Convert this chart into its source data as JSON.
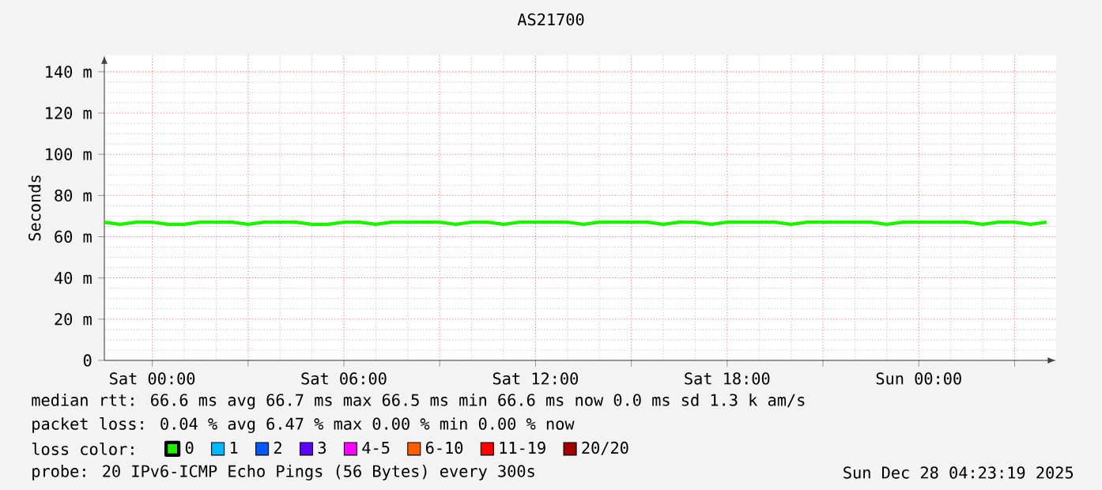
{
  "chart_data": {
    "type": "line",
    "title": "AS21700",
    "ylabel": "Seconds",
    "xlim": [
      "2025-12-26T22:30",
      "2025-12-28T04:18"
    ],
    "ylim": [
      0,
      148
    ],
    "xticks": [
      {
        "value": "2025-12-27T00:00",
        "label": "Sat 00:00"
      },
      {
        "value": "2025-12-27T03:00",
        "label": null
      },
      {
        "value": "2025-12-27T06:00",
        "label": "Sat 06:00"
      },
      {
        "value": "2025-12-27T09:00",
        "label": null
      },
      {
        "value": "2025-12-27T12:00",
        "label": "Sat 12:00"
      },
      {
        "value": "2025-12-27T15:00",
        "label": null
      },
      {
        "value": "2025-12-27T18:00",
        "label": "Sat 18:00"
      },
      {
        "value": "2025-12-27T21:00",
        "label": null
      },
      {
        "value": "2025-12-28T00:00",
        "label": "Sun 00:00"
      },
      {
        "value": "2025-12-28T03:00",
        "label": null
      }
    ],
    "yticks": [
      {
        "value": 0,
        "label": "0"
      },
      {
        "value": 20,
        "label": "20 m"
      },
      {
        "value": 40,
        "label": "40 m"
      },
      {
        "value": 60,
        "label": "60 m"
      },
      {
        "value": 80,
        "label": "80 m"
      },
      {
        "value": 100,
        "label": "100 m"
      },
      {
        "value": 120,
        "label": "120 m"
      },
      {
        "value": 140,
        "label": "140 m"
      }
    ],
    "grid": true,
    "legend": "bottom",
    "legend_title": "loss color:",
    "line_style": "solid",
    "marker": "none",
    "x": [
      "2025-12-26T22:30",
      "2025-12-26T23:00",
      "2025-12-26T23:30",
      "2025-12-27T00:00",
      "2025-12-27T00:30",
      "2025-12-27T01:00",
      "2025-12-27T01:30",
      "2025-12-27T02:00",
      "2025-12-27T02:30",
      "2025-12-27T03:00",
      "2025-12-27T03:30",
      "2025-12-27T04:00",
      "2025-12-27T04:30",
      "2025-12-27T05:00",
      "2025-12-27T05:30",
      "2025-12-27T06:00",
      "2025-12-27T06:30",
      "2025-12-27T07:00",
      "2025-12-27T07:30",
      "2025-12-27T08:00",
      "2025-12-27T08:30",
      "2025-12-27T09:00",
      "2025-12-27T09:30",
      "2025-12-27T10:00",
      "2025-12-27T10:30",
      "2025-12-27T11:00",
      "2025-12-27T11:30",
      "2025-12-27T12:00",
      "2025-12-27T12:30",
      "2025-12-27T13:00",
      "2025-12-27T13:30",
      "2025-12-27T14:00",
      "2025-12-27T14:30",
      "2025-12-27T15:00",
      "2025-12-27T15:30",
      "2025-12-27T16:00",
      "2025-12-27T16:30",
      "2025-12-27T17:00",
      "2025-12-27T17:30",
      "2025-12-27T18:00",
      "2025-12-27T18:30",
      "2025-12-27T19:00",
      "2025-12-27T19:30",
      "2025-12-27T20:00",
      "2025-12-27T20:30",
      "2025-12-27T21:00",
      "2025-12-27T21:30",
      "2025-12-27T22:00",
      "2025-12-27T22:30",
      "2025-12-27T23:00",
      "2025-12-27T23:30",
      "2025-12-28T00:00",
      "2025-12-28T00:30",
      "2025-12-28T01:00",
      "2025-12-28T01:30",
      "2025-12-28T02:00",
      "2025-12-28T02:30",
      "2025-12-28T03:00",
      "2025-12-28T03:30",
      "2025-12-28T04:00"
    ],
    "series": [
      {
        "name": "0",
        "color": "#22ee00",
        "values": [
          67,
          66,
          67,
          67,
          66,
          66,
          67,
          67,
          67,
          66,
          67,
          67,
          67,
          66,
          66,
          67,
          67,
          66,
          67,
          67,
          67,
          67,
          66,
          67,
          67,
          66,
          67,
          67,
          67,
          67,
          66,
          67,
          67,
          67,
          67,
          66,
          67,
          67,
          66,
          67,
          67,
          67,
          67,
          66,
          67,
          67,
          67,
          67,
          67,
          66,
          67,
          67,
          67,
          67,
          67,
          66,
          67,
          67,
          66,
          67
        ]
      },
      {
        "name": "1",
        "color": "#00b8ff",
        "values": [
          null,
          null,
          null,
          null,
          null,
          null,
          null,
          null,
          null,
          null,
          null,
          null,
          null,
          null,
          null,
          null,
          null,
          null,
          null,
          null,
          null,
          null,
          null,
          null,
          null,
          null,
          null,
          null,
          null,
          null,
          null,
          null,
          null,
          null,
          null,
          null,
          null,
          null,
          null,
          null,
          null,
          null,
          null,
          null,
          null,
          null,
          null,
          null,
          null,
          null,
          null,
          null,
          null,
          null,
          null,
          null,
          null,
          null,
          null,
          null
        ]
      },
      {
        "name": "2",
        "color": "#0059ff",
        "values": [
          null,
          null,
          null,
          null,
          null,
          null,
          null,
          null,
          null,
          null,
          null,
          null,
          null,
          null,
          null,
          null,
          null,
          null,
          null,
          null,
          null,
          null,
          null,
          null,
          null,
          null,
          null,
          null,
          null,
          null,
          null,
          null,
          null,
          null,
          null,
          null,
          null,
          null,
          null,
          null,
          null,
          null,
          null,
          null,
          null,
          null,
          null,
          null,
          null,
          null,
          null,
          null,
          null,
          null,
          null,
          null,
          null,
          null,
          null,
          null
        ]
      },
      {
        "name": "3",
        "color": "#5e00ff",
        "values": [
          null,
          null,
          null,
          null,
          null,
          null,
          null,
          null,
          null,
          null,
          null,
          null,
          null,
          null,
          null,
          null,
          null,
          null,
          null,
          null,
          null,
          null,
          null,
          null,
          null,
          null,
          null,
          null,
          null,
          null,
          null,
          null,
          null,
          null,
          null,
          null,
          null,
          null,
          null,
          null,
          null,
          null,
          null,
          null,
          null,
          null,
          null,
          null,
          null,
          null,
          null,
          null,
          null,
          null,
          null,
          null,
          null,
          null,
          null,
          null
        ]
      },
      {
        "name": "4-5",
        "color": "#ff00ff",
        "values": [
          null,
          null,
          null,
          null,
          null,
          null,
          null,
          null,
          null,
          null,
          null,
          null,
          null,
          null,
          null,
          null,
          null,
          null,
          null,
          null,
          null,
          null,
          null,
          null,
          null,
          null,
          null,
          null,
          null,
          null,
          null,
          null,
          null,
          null,
          null,
          null,
          null,
          null,
          null,
          null,
          null,
          null,
          null,
          null,
          null,
          null,
          null,
          null,
          null,
          null,
          null,
          null,
          null,
          null,
          null,
          null,
          null,
          null,
          null,
          null
        ]
      },
      {
        "name": "6-10",
        "color": "#ff5e00",
        "values": [
          null,
          null,
          null,
          null,
          null,
          null,
          null,
          null,
          null,
          null,
          null,
          null,
          null,
          null,
          null,
          null,
          null,
          null,
          null,
          null,
          null,
          null,
          null,
          null,
          null,
          null,
          null,
          null,
          null,
          null,
          null,
          null,
          null,
          null,
          null,
          null,
          null,
          null,
          null,
          null,
          null,
          null,
          null,
          null,
          null,
          null,
          null,
          null,
          null,
          null,
          null,
          null,
          null,
          null,
          null,
          null,
          null,
          null,
          null,
          null
        ]
      },
      {
        "name": "11-19",
        "color": "#ff0000",
        "values": [
          null,
          null,
          null,
          null,
          null,
          null,
          null,
          null,
          null,
          null,
          null,
          null,
          null,
          null,
          null,
          null,
          null,
          null,
          null,
          null,
          null,
          null,
          null,
          null,
          null,
          null,
          null,
          null,
          null,
          null,
          null,
          null,
          null,
          null,
          null,
          null,
          null,
          null,
          null,
          null,
          null,
          null,
          null,
          null,
          null,
          null,
          null,
          null,
          null,
          null,
          null,
          null,
          null,
          null,
          null,
          null,
          null,
          null,
          null,
          null
        ]
      },
      {
        "name": "20/20",
        "color": "#a10000",
        "values": [
          null,
          null,
          null,
          null,
          null,
          null,
          null,
          null,
          null,
          null,
          null,
          null,
          null,
          null,
          null,
          null,
          null,
          null,
          null,
          null,
          null,
          null,
          null,
          null,
          null,
          null,
          null,
          null,
          null,
          null,
          null,
          null,
          null,
          null,
          null,
          null,
          null,
          null,
          null,
          null,
          null,
          null,
          null,
          null,
          null,
          null,
          null,
          null,
          null,
          null,
          null,
          null,
          null,
          null,
          null,
          null,
          null,
          null,
          null,
          null
        ]
      }
    ],
    "annotations": [
      "median rtt:  66.6 ms avg  66.7 ms max  66.5 ms min  66.6 ms now  0.0 ms sd  1.3 k am/s",
      "packet loss: 0.04 % avg  6.47 % max  0.00 % min  0.00 % now",
      "probe:       20 IPv6-ICMP Echo Pings (56 Bytes) every 300s",
      "Sun Dec 28 04:23:19 2025"
    ]
  }
}
